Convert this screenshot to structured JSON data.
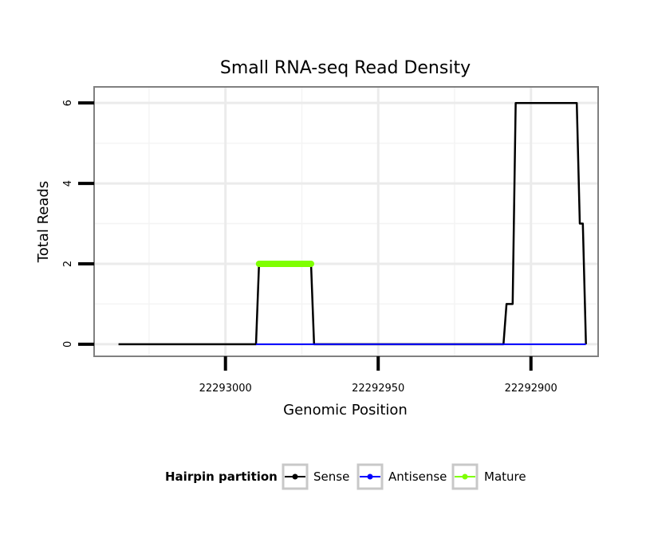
{
  "chart_data": {
    "type": "line",
    "title": "Small RNA-seq Read Density",
    "xlabel": "Genomic Position",
    "ylabel": "Total Reads",
    "x_reversed": true,
    "xlim": [
      23043,
      22878
    ],
    "ylim": [
      -0.3,
      6.4
    ],
    "x_ticks": [
      23000,
      22950,
      22900
    ],
    "x_tick_labels": [
      "22293000",
      "22292950",
      "22292900"
    ],
    "y_ticks": [
      0,
      2,
      4,
      6
    ],
    "y_tick_labels": [
      "0",
      "2",
      "4",
      "6"
    ],
    "grid": true,
    "series": [
      {
        "name": "Sense",
        "color": "#000000",
        "x": [
          23035,
          22990,
          22989,
          22972,
          22971,
          22909,
          22908,
          22907,
          22906,
          22905,
          22885,
          22884,
          22883,
          22882
        ],
        "y": [
          0,
          0,
          2,
          2,
          0,
          0,
          1,
          1,
          1,
          6,
          6,
          3,
          3,
          0
        ]
      },
      {
        "name": "Antisense",
        "color": "#0000ff",
        "x": [
          22990,
          22971,
          22909,
          22882
        ],
        "y": [
          0,
          0,
          0,
          0
        ]
      },
      {
        "name": "Mature",
        "color": "#7fff00",
        "x": [
          22989,
          22972
        ],
        "y": [
          2,
          2
        ]
      }
    ],
    "legend": {
      "title": "Hairpin partition",
      "position": "bottom",
      "entries": [
        "Sense",
        "Antisense",
        "Mature"
      ]
    }
  }
}
